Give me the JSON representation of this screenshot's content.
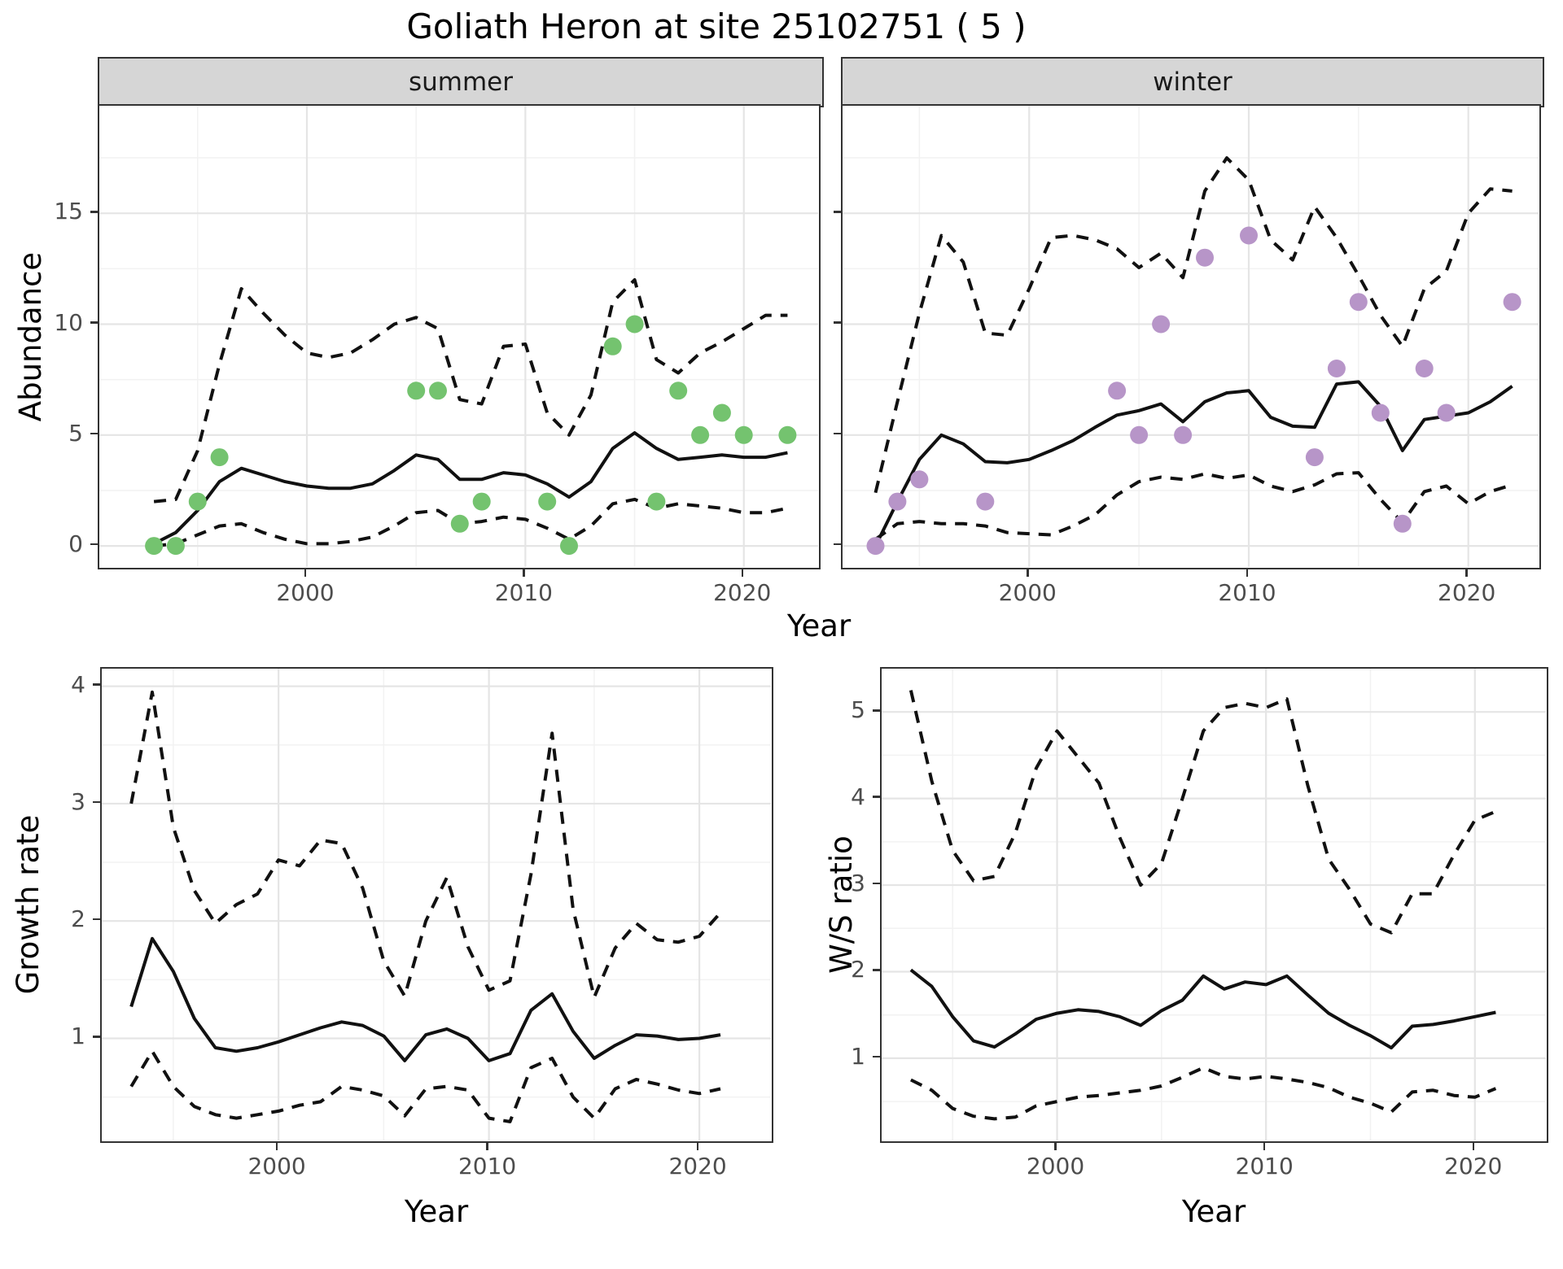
{
  "title": "Goliath Heron at site 25102751 ( 5 )",
  "axes": {
    "x_label": "Year",
    "abundance_label": "Abundance",
    "growth_label": "Growth rate",
    "ws_label": "W/S ratio"
  },
  "facets": [
    {
      "label": "summer"
    },
    {
      "label": "winter"
    }
  ],
  "colors": {
    "summer_point": "#74c36f",
    "winter_point": "#b795c8",
    "line": "#111111",
    "strip_bg": "#d6d6d6",
    "grid_major": "#e5e5e5",
    "grid_minor": "#f2f2f2",
    "panel_border": "#333333",
    "tick_text": "#4d4d4d"
  },
  "chart_data": [
    {
      "id": "summer",
      "type": "line",
      "title": "summer",
      "xlabel": "Year",
      "ylabel": "Abundance",
      "xlim": [
        1990.5,
        2023.4
      ],
      "ylim": [
        -0.95,
        19.85
      ],
      "xticks": [
        2000,
        2010,
        2020
      ],
      "xminor": [
        1995,
        2005,
        2015
      ],
      "yticks": [
        0,
        5,
        10,
        15
      ],
      "yminor": [
        2.5,
        7.5,
        12.5,
        17.5
      ],
      "grid": true,
      "legend": "none",
      "years": [
        1993,
        1994,
        1995,
        1996,
        1997,
        1998,
        1999,
        2000,
        2001,
        2002,
        2003,
        2004,
        2005,
        2006,
        2007,
        2008,
        2009,
        2010,
        2011,
        2012,
        2013,
        2014,
        2015,
        2016,
        2017,
        2018,
        2019,
        2020,
        2021,
        2022
      ],
      "series": [
        {
          "name": "mean",
          "style": "solid",
          "values": [
            0.1,
            0.6,
            1.6,
            2.9,
            3.5,
            3.2,
            2.9,
            2.7,
            2.6,
            2.6,
            2.8,
            3.4,
            4.1,
            3.9,
            3.0,
            3.0,
            3.3,
            3.2,
            2.8,
            2.2,
            2.9,
            4.4,
            5.1,
            4.4,
            3.9,
            4.0,
            4.1,
            4.0,
            4.0,
            4.2
          ]
        },
        {
          "name": "upper_ci",
          "style": "dashed",
          "values": [
            2.0,
            2.1,
            4.3,
            8.2,
            11.6,
            10.5,
            9.5,
            8.7,
            8.5,
            8.7,
            9.3,
            10.0,
            10.3,
            9.8,
            6.6,
            6.4,
            9.0,
            9.1,
            6.0,
            5.0,
            6.8,
            11.0,
            12.0,
            8.4,
            7.8,
            8.7,
            9.2,
            9.8,
            10.4,
            10.4
          ]
        },
        {
          "name": "lower_ci",
          "style": "dashed",
          "values": [
            0.0,
            0.1,
            0.5,
            0.9,
            1.0,
            0.6,
            0.3,
            0.1,
            0.1,
            0.2,
            0.4,
            0.9,
            1.5,
            1.6,
            1.0,
            1.1,
            1.3,
            1.2,
            0.8,
            0.3,
            0.9,
            1.9,
            2.1,
            1.7,
            1.9,
            1.8,
            1.7,
            1.5,
            1.5,
            1.7
          ]
        }
      ],
      "points": {
        "name": "observed_counts",
        "color": "#74c36f",
        "data": [
          [
            1993,
            0
          ],
          [
            1994,
            0
          ],
          [
            1995,
            2
          ],
          [
            1996,
            4
          ],
          [
            2005,
            7
          ],
          [
            2006,
            7
          ],
          [
            2007,
            1
          ],
          [
            2008,
            2
          ],
          [
            2011,
            2
          ],
          [
            2012,
            0
          ],
          [
            2014,
            9
          ],
          [
            2015,
            10
          ],
          [
            2016,
            2
          ],
          [
            2017,
            7
          ],
          [
            2018,
            5
          ],
          [
            2019,
            6
          ],
          [
            2020,
            5
          ],
          [
            2022,
            5
          ]
        ]
      }
    },
    {
      "id": "winter",
      "type": "line",
      "title": "winter",
      "xlabel": "Year",
      "ylabel": "Abundance",
      "xlim": [
        1991.5,
        2023.2
      ],
      "ylim": [
        -0.95,
        19.85
      ],
      "xticks": [
        2000,
        2010,
        2020
      ],
      "xminor": [
        1995,
        2005,
        2015
      ],
      "yticks": [
        0,
        5,
        10,
        15
      ],
      "yminor": [
        2.5,
        7.5,
        12.5,
        17.5
      ],
      "grid": true,
      "legend": "none",
      "years": [
        1993,
        1994,
        1995,
        1996,
        1997,
        1998,
        1999,
        2000,
        2001,
        2002,
        2003,
        2004,
        2005,
        2006,
        2007,
        2008,
        2009,
        2010,
        2011,
        2012,
        2013,
        2014,
        2015,
        2016,
        2017,
        2018,
        2019,
        2020,
        2021,
        2022
      ],
      "series": [
        {
          "name": "mean",
          "style": "solid",
          "values": [
            0.0,
            2.0,
            3.9,
            5.0,
            4.6,
            3.8,
            3.75,
            3.9,
            4.3,
            4.75,
            5.35,
            5.9,
            6.1,
            6.4,
            5.6,
            6.5,
            6.9,
            7.0,
            5.8,
            5.4,
            5.35,
            7.3,
            7.4,
            6.3,
            4.3,
            5.7,
            5.85,
            6.0,
            6.5,
            7.2
          ]
        },
        {
          "name": "upper_ci",
          "style": "dashed",
          "values": [
            2.4,
            6.5,
            10.5,
            14.0,
            12.8,
            9.6,
            9.5,
            11.6,
            13.9,
            14.0,
            13.8,
            13.4,
            12.55,
            13.2,
            12.1,
            16.0,
            17.5,
            16.5,
            13.8,
            12.9,
            15.3,
            13.9,
            12.2,
            10.4,
            9.0,
            11.6,
            12.4,
            15.0,
            16.1,
            16.0
          ]
        },
        {
          "name": "lower_ci",
          "style": "dashed",
          "values": [
            0.3,
            1.0,
            1.1,
            1.0,
            1.0,
            0.9,
            0.6,
            0.55,
            0.5,
            0.9,
            1.4,
            2.3,
            2.9,
            3.1,
            3.0,
            3.25,
            3.05,
            3.2,
            2.7,
            2.45,
            2.75,
            3.25,
            3.3,
            2.1,
            1.05,
            2.45,
            2.7,
            1.9,
            2.45,
            2.75
          ]
        }
      ],
      "points": {
        "name": "observed_counts",
        "color": "#b795c8",
        "data": [
          [
            1993,
            0
          ],
          [
            1994,
            2
          ],
          [
            1995,
            3
          ],
          [
            1998,
            2
          ],
          [
            2004,
            7
          ],
          [
            2005,
            5
          ],
          [
            2006,
            10
          ],
          [
            2007,
            5
          ],
          [
            2008,
            13
          ],
          [
            2010,
            14
          ],
          [
            2013,
            4
          ],
          [
            2014,
            8
          ],
          [
            2015,
            11
          ],
          [
            2016,
            6
          ],
          [
            2017,
            1
          ],
          [
            2018,
            8
          ],
          [
            2019,
            6
          ],
          [
            2022,
            11
          ]
        ]
      }
    },
    {
      "id": "growth",
      "type": "line",
      "title": "Growth rate",
      "xlabel": "Year",
      "ylabel": "Growth rate",
      "xlim": [
        1991.6,
        2023.4
      ],
      "ylim": [
        0.13,
        4.15
      ],
      "xticks": [
        2000,
        2010,
        2020
      ],
      "xminor": [
        1995,
        2005,
        2015
      ],
      "yticks": [
        1,
        2,
        3,
        4
      ],
      "yminor": [
        0.5,
        1.5,
        2.5,
        3.5
      ],
      "grid": true,
      "legend": "none",
      "years": [
        1993,
        1994,
        1995,
        1996,
        1997,
        1998,
        1999,
        2000,
        2001,
        2002,
        2003,
        2004,
        2005,
        2006,
        2007,
        2008,
        2009,
        2010,
        2011,
        2012,
        2013,
        2014,
        2015,
        2016,
        2017,
        2018,
        2019,
        2020,
        2021
      ],
      "series": [
        {
          "name": "mean",
          "style": "solid",
          "values": [
            1.27,
            1.85,
            1.57,
            1.17,
            0.92,
            0.89,
            0.92,
            0.97,
            1.03,
            1.09,
            1.14,
            1.11,
            1.02,
            0.81,
            1.03,
            1.08,
            1.0,
            0.81,
            0.87,
            1.24,
            1.38,
            1.06,
            0.83,
            0.94,
            1.03,
            1.02,
            0.99,
            1.0,
            1.03
          ]
        },
        {
          "name": "upper_ci",
          "style": "dashed",
          "values": [
            3.0,
            3.95,
            2.8,
            2.26,
            1.98,
            2.14,
            2.23,
            2.52,
            2.47,
            2.69,
            2.66,
            2.28,
            1.66,
            1.36,
            2.0,
            2.37,
            1.78,
            1.41,
            1.49,
            2.4,
            3.6,
            2.1,
            1.35,
            1.77,
            1.98,
            1.84,
            1.82,
            1.87,
            2.07
          ]
        },
        {
          "name": "lower_ci",
          "style": "dashed",
          "values": [
            0.59,
            0.89,
            0.59,
            0.42,
            0.35,
            0.32,
            0.35,
            0.38,
            0.43,
            0.46,
            0.59,
            0.56,
            0.51,
            0.34,
            0.57,
            0.59,
            0.56,
            0.32,
            0.29,
            0.75,
            0.83,
            0.5,
            0.32,
            0.57,
            0.65,
            0.61,
            0.56,
            0.53,
            0.57
          ]
        }
      ],
      "points": null
    },
    {
      "id": "ws",
      "type": "line",
      "title": "W/S ratio",
      "xlabel": "Year",
      "ylabel": "W/S ratio",
      "xlim": [
        1991.6,
        2023.4
      ],
      "ylim": [
        0.05,
        5.5
      ],
      "xticks": [
        2000,
        2010,
        2020
      ],
      "xminor": [
        1995,
        2005,
        2015
      ],
      "yticks": [
        1,
        2,
        3,
        4,
        5
      ],
      "yminor": [
        0.5,
        1.5,
        2.5,
        3.5,
        4.5
      ],
      "grid": true,
      "legend": "none",
      "years": [
        1993,
        1994,
        1995,
        1996,
        1997,
        1998,
        1999,
        2000,
        2001,
        2002,
        2003,
        2004,
        2005,
        2006,
        2007,
        2008,
        2009,
        2010,
        2011,
        2012,
        2013,
        2014,
        2015,
        2016,
        2017,
        2018,
        2019,
        2020,
        2021
      ],
      "series": [
        {
          "name": "mean",
          "style": "solid",
          "values": [
            2.02,
            1.83,
            1.48,
            1.2,
            1.13,
            1.28,
            1.45,
            1.52,
            1.56,
            1.54,
            1.48,
            1.38,
            1.55,
            1.67,
            1.95,
            1.8,
            1.88,
            1.85,
            1.95,
            1.73,
            1.52,
            1.38,
            1.26,
            1.12,
            1.37,
            1.39,
            1.43,
            1.48,
            1.53
          ]
        },
        {
          "name": "upper_ci",
          "style": "dashed",
          "values": [
            5.25,
            4.2,
            3.4,
            3.05,
            3.1,
            3.6,
            4.35,
            4.78,
            4.48,
            4.18,
            3.55,
            3.0,
            3.25,
            4.0,
            4.78,
            5.05,
            5.1,
            5.05,
            5.15,
            4.15,
            3.3,
            2.95,
            2.55,
            2.45,
            2.9,
            2.9,
            3.35,
            3.75,
            3.85
          ]
        },
        {
          "name": "lower_ci",
          "style": "dashed",
          "values": [
            0.75,
            0.63,
            0.42,
            0.33,
            0.3,
            0.32,
            0.45,
            0.5,
            0.55,
            0.57,
            0.6,
            0.63,
            0.68,
            0.78,
            0.89,
            0.79,
            0.76,
            0.79,
            0.76,
            0.72,
            0.66,
            0.55,
            0.48,
            0.38,
            0.61,
            0.63,
            0.57,
            0.55,
            0.65
          ]
        }
      ],
      "points": null
    }
  ]
}
